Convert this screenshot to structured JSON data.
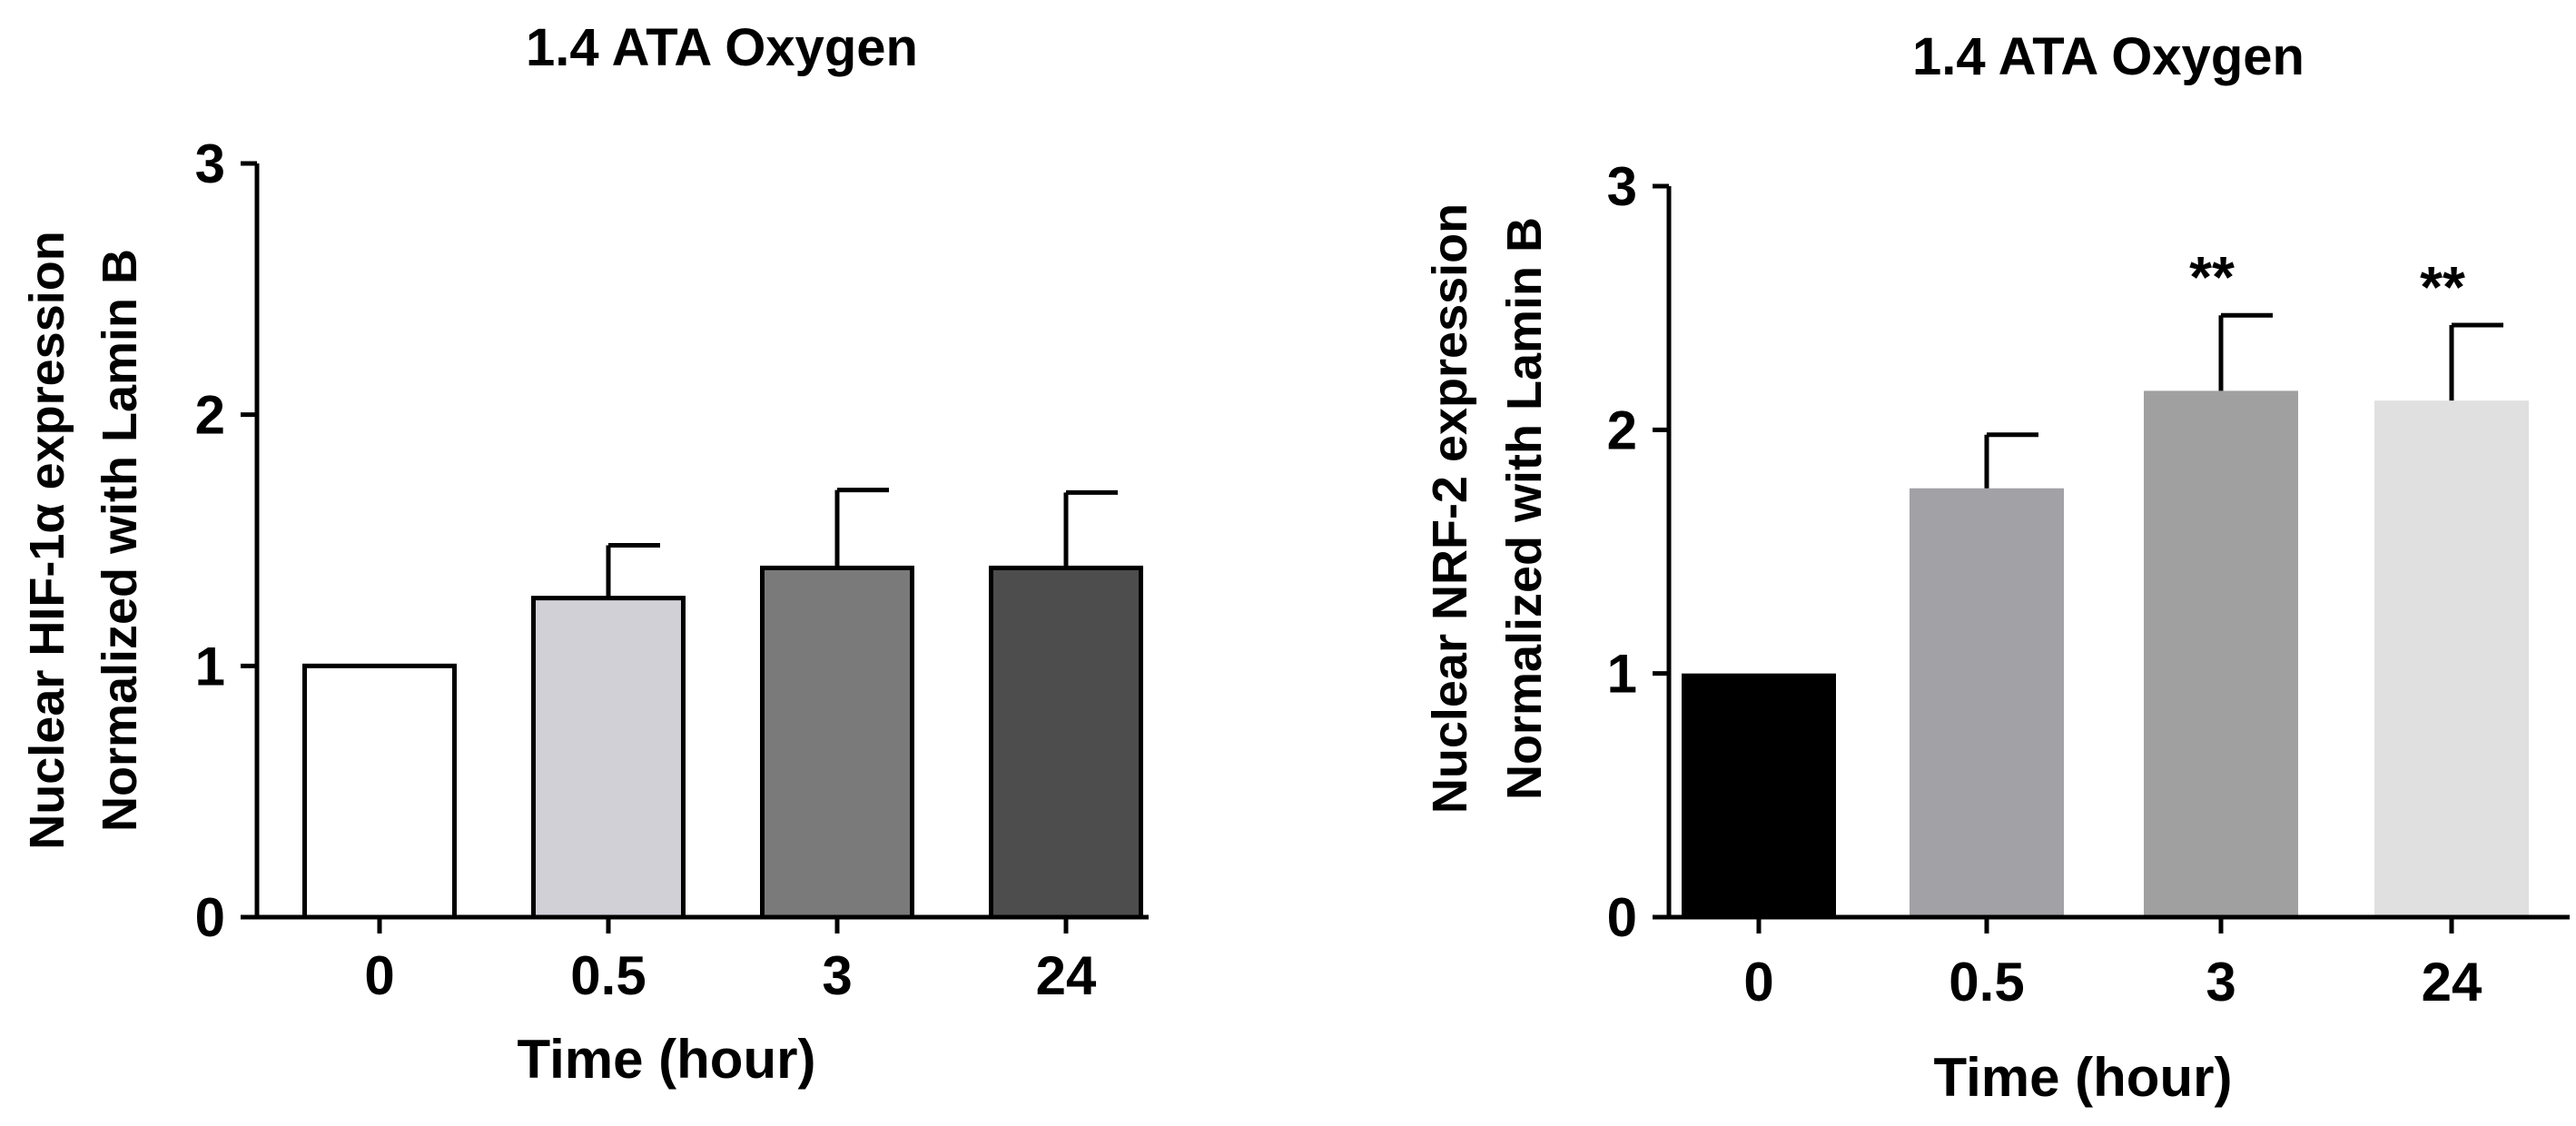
{
  "chart_data": [
    {
      "type": "bar",
      "title": "1.4 ATA Oxygen",
      "xlabel": "Time (hour)",
      "ylabel_lines": [
        "Nuclear HIF-1α expression",
        "Normalized with  Lamin B"
      ],
      "categories": [
        "0",
        "0.5",
        "3",
        "24"
      ],
      "values": [
        1.0,
        1.27,
        1.39,
        1.39
      ],
      "errors": [
        0,
        0.21,
        0.31,
        0.3
      ],
      "colors": [
        "#ffffff",
        "#d0d0d6",
        "#7a7a7a",
        "#4d4d4d"
      ],
      "bar_outline": true,
      "annotations": [
        "",
        "",
        "",
        ""
      ],
      "yticks": [
        "0",
        "1",
        "2",
        "3"
      ],
      "ylim": [
        0,
        3
      ]
    },
    {
      "type": "bar",
      "title": "1.4 ATA Oxygen",
      "xlabel": "Time (hour)",
      "ylabel_lines": [
        "Nuclear NRF-2 expression",
        "Normalized with Lamin B"
      ],
      "categories": [
        "0",
        "0.5",
        "3",
        "24"
      ],
      "values": [
        1.0,
        1.76,
        2.16,
        2.12
      ],
      "errors": [
        0,
        0.22,
        0.31,
        0.31
      ],
      "colors": [
        "#000000",
        "#a2a2a6",
        "#a0a0a0",
        "#e0e0e0"
      ],
      "bar_outline": false,
      "annotations": [
        "",
        "",
        "**",
        "**"
      ],
      "yticks": [
        "0",
        "1",
        "2",
        "3"
      ],
      "ylim": [
        0,
        3
      ]
    }
  ]
}
